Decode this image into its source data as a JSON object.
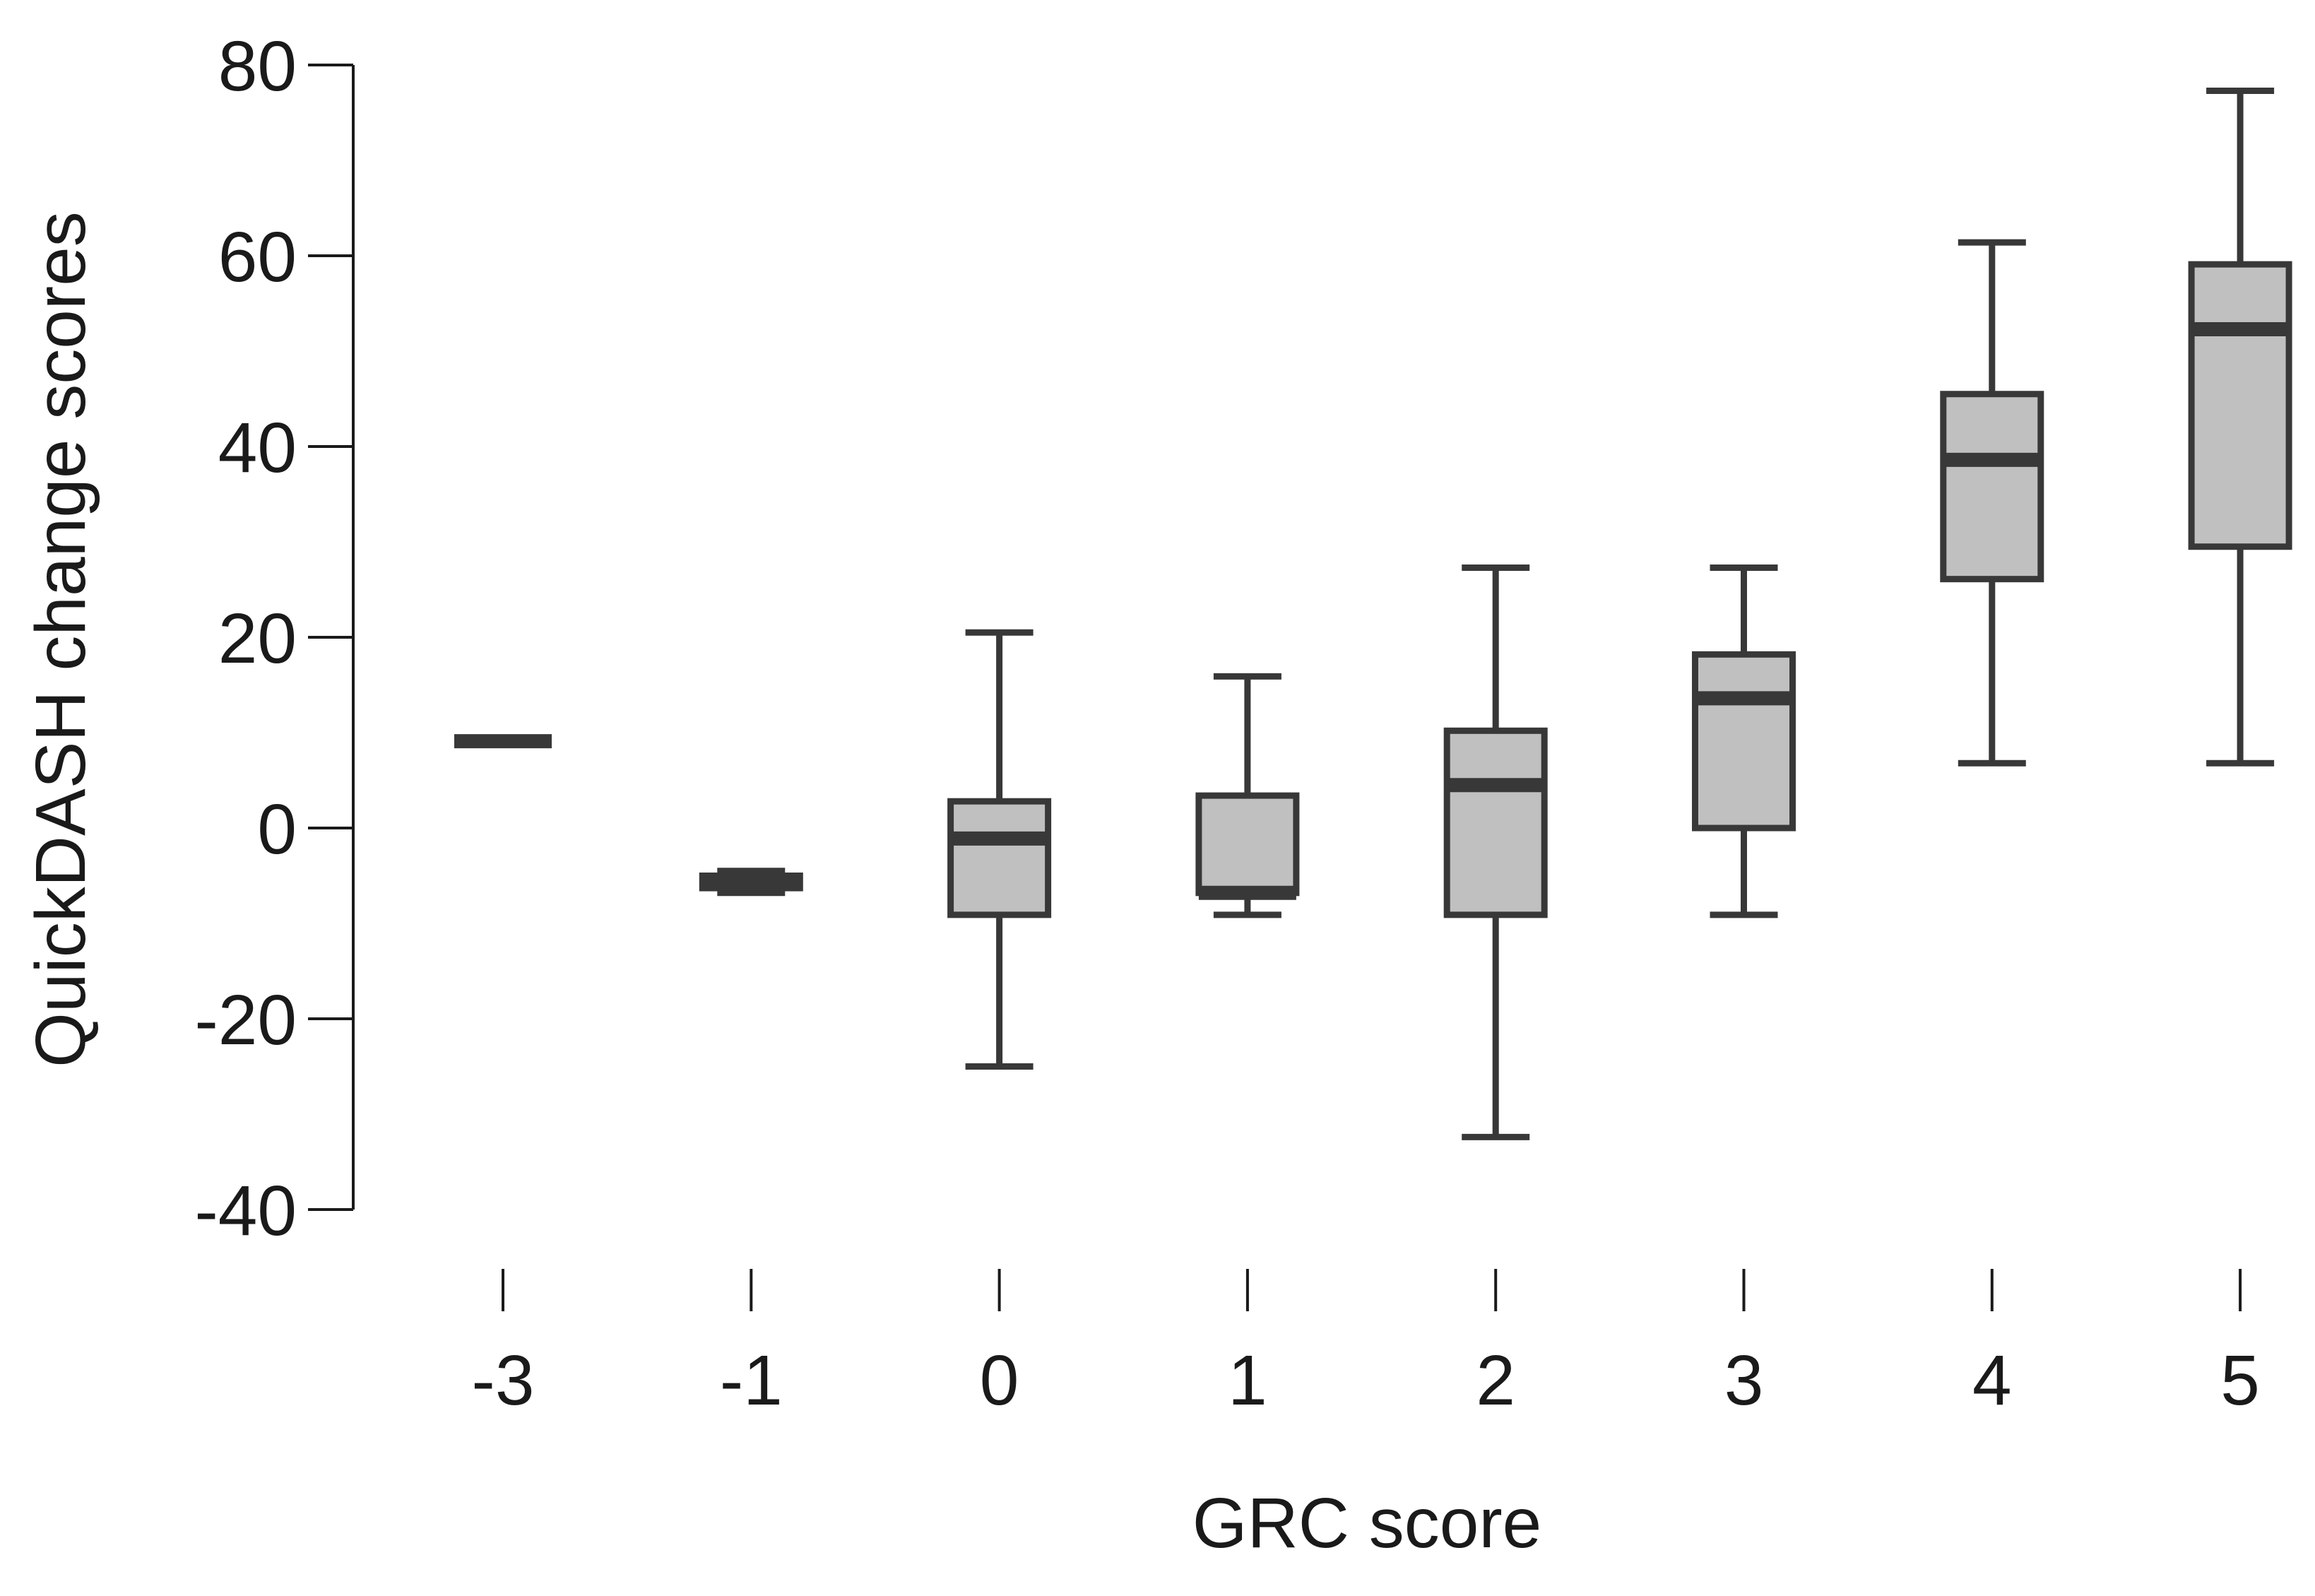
{
  "chart_data": {
    "type": "box",
    "xlabel": "GRC score",
    "ylabel": "QuickDASH change scores",
    "ylim": [
      -40,
      80
    ],
    "yticks": [
      80,
      60,
      40,
      20,
      0,
      -20,
      -40
    ],
    "ytick_labels": [
      "80",
      "60",
      "40",
      "20",
      "0",
      "-20",
      "-40"
    ],
    "categories": [
      "-3",
      "-1",
      "0",
      "1",
      "2",
      "3",
      "4",
      "5"
    ],
    "boxes": [
      {
        "category": "-3",
        "min": 9.1,
        "q1": 9.1,
        "median": 9.1,
        "q3": 9.1,
        "max": 9.1
      },
      {
        "category": "-1",
        "min": -6.8,
        "q1": -6.3,
        "median": -5.7,
        "q3": -5.0,
        "max": -4.5
      },
      {
        "category": "0",
        "min": -25.0,
        "q1": -9.1,
        "median": -1.1,
        "q3": 2.8,
        "max": 20.5
      },
      {
        "category": "1",
        "min": -9.1,
        "q1": -6.8,
        "median": -6.8,
        "q3": 3.4,
        "max": 15.9
      },
      {
        "category": "2",
        "min": -32.4,
        "q1": -9.1,
        "median": 4.5,
        "q3": 10.2,
        "max": 27.3
      },
      {
        "category": "3",
        "min": -9.1,
        "q1": 0.0,
        "median": 13.6,
        "q3": 18.2,
        "max": 27.3
      },
      {
        "category": "4",
        "min": 6.8,
        "q1": 26.1,
        "median": 38.6,
        "q3": 45.5,
        "max": 61.4
      },
      {
        "category": "5",
        "min": 6.8,
        "q1": 29.5,
        "median": 52.3,
        "q3": 59.1,
        "max": 77.3
      }
    ],
    "box_fill": "#c0c0c0",
    "box_stroke": "#383838",
    "grid": false,
    "legend": "none"
  }
}
